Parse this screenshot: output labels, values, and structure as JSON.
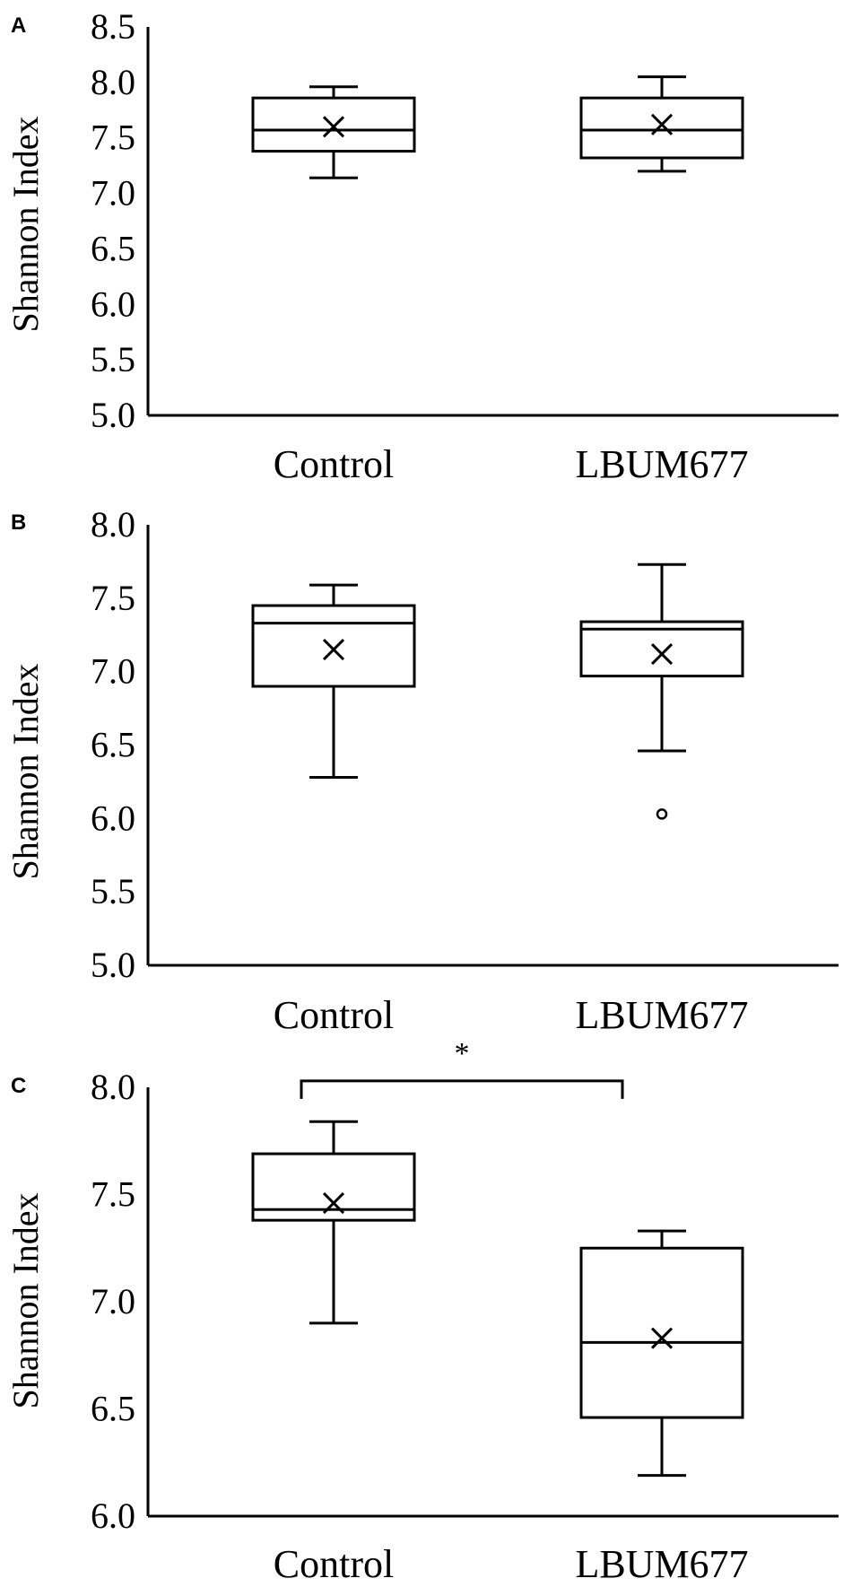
{
  "chart_data": [
    {
      "panel": "A",
      "type": "box",
      "ylabel": "Shannon Index",
      "ylim": [
        5.0,
        8.5
      ],
      "yticks": [
        "5.0",
        "5.5",
        "6.0",
        "6.5",
        "7.0",
        "7.5",
        "8.0",
        "8.5"
      ],
      "categories": [
        "Control",
        "LBUM677"
      ],
      "boxes": [
        {
          "whisker_low": 7.14,
          "q1": 7.38,
          "median": 7.57,
          "q3": 7.86,
          "whisker_high": 7.96,
          "mean": 7.6,
          "outliers": []
        },
        {
          "whisker_low": 7.2,
          "q1": 7.32,
          "median": 7.57,
          "q3": 7.86,
          "whisker_high": 8.05,
          "mean": 7.62,
          "outliers": []
        }
      ],
      "significance": null
    },
    {
      "panel": "B",
      "type": "box",
      "ylabel": "Shannon Index",
      "ylim": [
        5.0,
        8.0
      ],
      "yticks": [
        "5.0",
        "5.5",
        "6.0",
        "6.5",
        "7.0",
        "7.5",
        "8.0"
      ],
      "categories": [
        "Control",
        "LBUM677"
      ],
      "boxes": [
        {
          "whisker_low": 6.28,
          "q1": 6.9,
          "median": 7.33,
          "q3": 7.45,
          "whisker_high": 7.59,
          "mean": 7.15,
          "outliers": []
        },
        {
          "whisker_low": 6.46,
          "q1": 6.97,
          "median": 7.29,
          "q3": 7.34,
          "whisker_high": 7.73,
          "mean": 7.12,
          "outliers": [
            6.03
          ]
        }
      ],
      "significance": null
    },
    {
      "panel": "C",
      "type": "box",
      "ylabel": "Shannon Index",
      "ylim": [
        6.0,
        8.0
      ],
      "yticks": [
        "6.0",
        "6.5",
        "7.0",
        "7.5",
        "8.0"
      ],
      "categories": [
        "Control",
        "LBUM677"
      ],
      "boxes": [
        {
          "whisker_low": 6.9,
          "q1": 7.38,
          "median": 7.43,
          "q3": 7.69,
          "whisker_high": 7.84,
          "mean": 7.46,
          "outliers": []
        },
        {
          "whisker_low": 6.19,
          "q1": 6.46,
          "median": 6.81,
          "q3": 7.25,
          "whisker_high": 7.33,
          "mean": 6.83,
          "outliers": []
        }
      ],
      "significance": {
        "label": "*",
        "level": 8.03
      }
    }
  ]
}
